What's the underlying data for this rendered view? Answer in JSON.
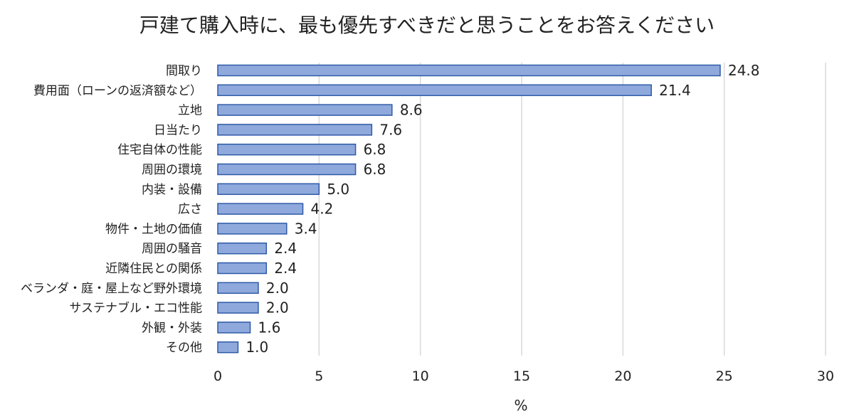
{
  "chart_data": {
    "type": "bar",
    "orientation": "horizontal",
    "title": "戸建て購入時に、最も優先すべきだと思うことをお答えください",
    "xlabel": "%",
    "ylabel": "",
    "xlim": [
      0,
      30
    ],
    "xticks": [
      "0",
      "5",
      "10",
      "15",
      "20",
      "25",
      "30"
    ],
    "grid": true,
    "legend": "none",
    "categories": [
      "間取り",
      "費用面（ローンの返済額など）",
      "立地",
      "日当たり",
      "住宅自体の性能",
      "周囲の環境",
      "内装・設備",
      "広さ",
      "物件・土地の価値",
      "周囲の騒音",
      "近隣住民との関係",
      "ベランダ・庭・屋上など野外環境",
      "サステナブル・エコ性能",
      "外観・外装",
      "その他"
    ],
    "values": [
      24.8,
      21.4,
      8.6,
      7.6,
      6.8,
      6.8,
      5.0,
      4.2,
      3.4,
      2.4,
      2.4,
      2.0,
      2.0,
      1.6,
      1.0
    ],
    "value_labels": [
      "24.8",
      "21.4",
      "8.6",
      "7.6",
      "6.8",
      "6.8",
      "5.0",
      "4.2",
      "3.4",
      "2.4",
      "2.4",
      "2.0",
      "2.0",
      "1.6",
      "1.0"
    ],
    "colors": {
      "bar_fill": "#8FA9DC",
      "bar_stroke": "#2F5AA8",
      "grid": "#D9D9D9",
      "text": "#222222"
    }
  }
}
